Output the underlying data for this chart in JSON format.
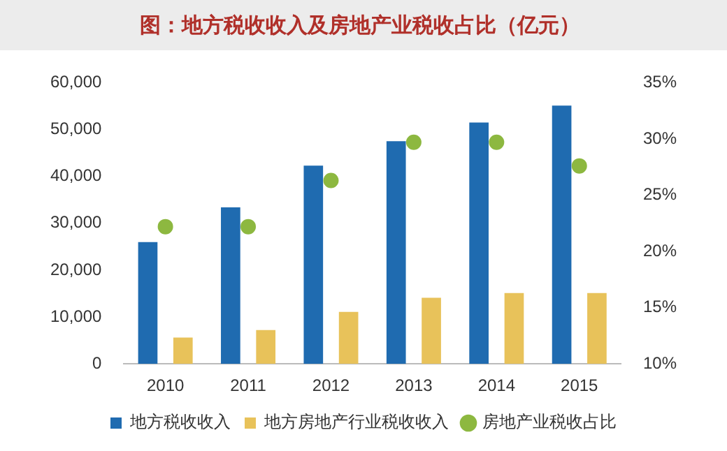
{
  "chart_data": {
    "type": "bar",
    "title": "图：地方税收收入及房地产业税收占比（亿元）",
    "categories": [
      "2010",
      "2011",
      "2012",
      "2013",
      "2014",
      "2015"
    ],
    "series": [
      {
        "name": "地方税收收入",
        "color": "#1f6bb0",
        "values": [
          26000,
          33400,
          42300,
          47500,
          51500,
          55100
        ]
      },
      {
        "name": "地方房地产行业税收收入",
        "color": "#e8c25a",
        "values": [
          5600,
          7200,
          11100,
          14100,
          15100,
          15100
        ]
      },
      {
        "name": "房地产业税收占比",
        "type": "scatter",
        "axis": "y2",
        "color": "#8db840",
        "values": [
          22.2,
          22.2,
          26.3,
          29.7,
          29.7,
          27.6
        ]
      }
    ],
    "ylim": [
      0,
      60000
    ],
    "yticks": [
      {
        "value": 0,
        "label": "0"
      },
      {
        "value": 10000,
        "label": "10,000"
      },
      {
        "value": 20000,
        "label": "20,000"
      },
      {
        "value": 30000,
        "label": "30,000"
      },
      {
        "value": 40000,
        "label": "40,000"
      },
      {
        "value": 50000,
        "label": "50,000"
      },
      {
        "value": 60000,
        "label": "60,000"
      }
    ],
    "y2lim": [
      10,
      35
    ],
    "y2ticks": [
      {
        "value": 10,
        "label": "10%"
      },
      {
        "value": 15,
        "label": "15%"
      },
      {
        "value": 20,
        "label": "20%"
      },
      {
        "value": 25,
        "label": "25%"
      },
      {
        "value": 30,
        "label": "30%"
      },
      {
        "value": 35,
        "label": "35%"
      }
    ],
    "grid": false,
    "legend": "bottom",
    "marker": "circle"
  }
}
